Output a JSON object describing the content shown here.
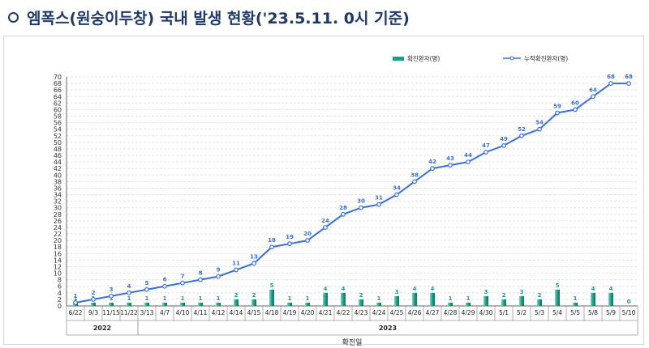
{
  "title": "엠폭스(원숭이두창) 국내 발생 현황('23.5.11. 0시 기준)",
  "colors": {
    "title": "#1f3a68",
    "bar": "#1e9e8a",
    "bar_light": "#7fd4c4",
    "line": "#3a6fd8",
    "cum_label": "#3a6fd8",
    "daily_label": "#1e9e8a"
  },
  "chart_data": {
    "type": "bar",
    "categories": [
      "6/22",
      "9/3",
      "11/15",
      "11/22",
      "3/13",
      "4/7",
      "4/10",
      "4/11",
      "4/12",
      "4/14",
      "4/15",
      "4/18",
      "4/19",
      "4/20",
      "4/21",
      "4/22",
      "4/23",
      "4/24",
      "4/25",
      "4/26",
      "4/27",
      "4/28",
      "4/29",
      "4/30",
      "5/1",
      "5/2",
      "5/3",
      "5/4",
      "5/5",
      "5/8",
      "5/9",
      "5/10"
    ],
    "year_groups": [
      {
        "label": "2022",
        "start": 0,
        "end": 3
      },
      {
        "label": "2023",
        "start": 4,
        "end": 31
      }
    ],
    "series": [
      {
        "name": "확진환자(명)",
        "type": "bar",
        "values": [
          1,
          1,
          1,
          1,
          1,
          1,
          1,
          1,
          1,
          2,
          2,
          5,
          1,
          1,
          4,
          4,
          2,
          1,
          3,
          4,
          4,
          1,
          1,
          3,
          2,
          3,
          2,
          5,
          1,
          4,
          4,
          0
        ]
      },
      {
        "name": "누적확진환자(명)",
        "type": "line",
        "values": [
          1,
          2,
          3,
          4,
          5,
          6,
          7,
          8,
          9,
          11,
          13,
          18,
          19,
          20,
          24,
          28,
          30,
          31,
          34,
          38,
          42,
          43,
          44,
          47,
          49,
          52,
          54,
          59,
          60,
          64,
          68,
          68
        ]
      }
    ],
    "xlabel": "확진일",
    "ylabel": "",
    "ylim": [
      0,
      70
    ],
    "yticks": [
      0,
      2,
      4,
      6,
      8,
      10,
      12,
      14,
      16,
      18,
      20,
      22,
      24,
      26,
      28,
      30,
      32,
      34,
      36,
      38,
      40,
      42,
      44,
      46,
      48,
      50,
      52,
      54,
      56,
      58,
      60,
      62,
      64,
      66,
      68,
      70
    ],
    "grid": true,
    "legend": "top-center"
  }
}
